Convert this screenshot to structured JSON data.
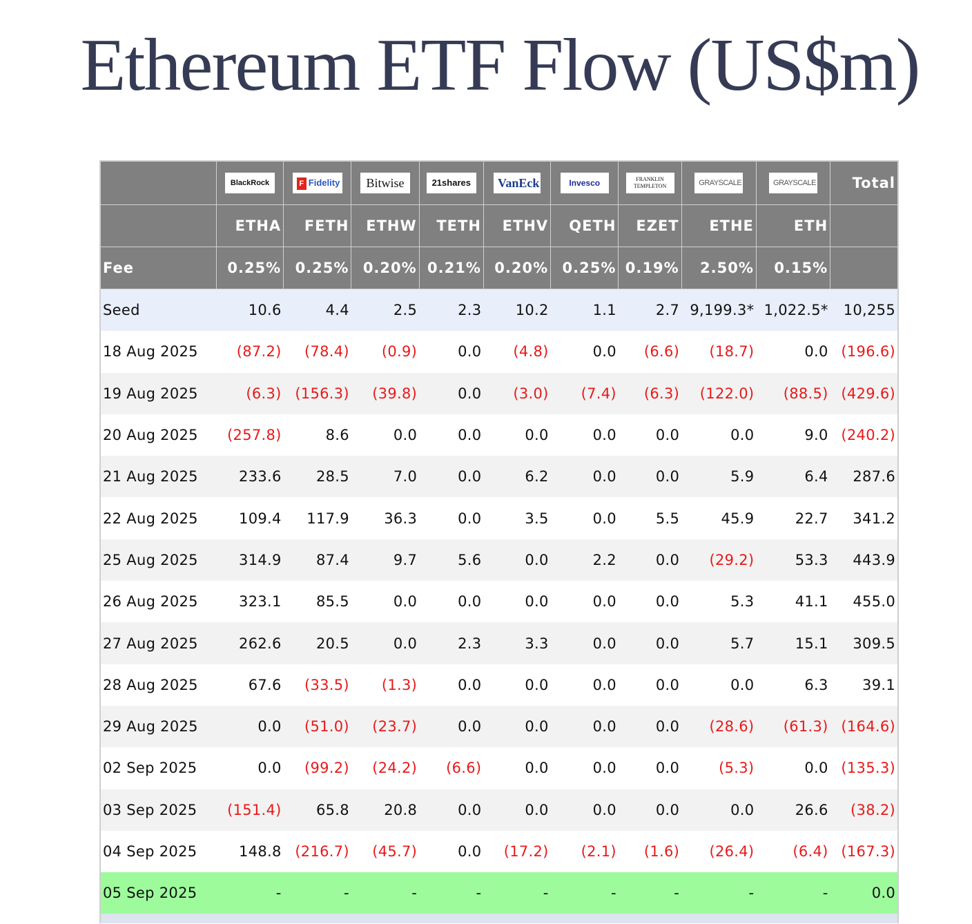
{
  "title": "Ethereum ETF Flow (US$m)",
  "header": {
    "issuers": [
      {
        "name": "BlackRock",
        "icon": "blackrock-logo"
      },
      {
        "name": "Fidelity",
        "icon": "fidelity-logo"
      },
      {
        "name": "Bitwise",
        "icon": "bitwise-logo"
      },
      {
        "name": "21shares",
        "icon": "21shares-logo"
      },
      {
        "name": "VanEck",
        "icon": "vaneck-logo"
      },
      {
        "name": "Invesco",
        "icon": "invesco-logo"
      },
      {
        "name": "FRANKLIN TEMPLETON",
        "icon": "franklin-templeton-logo"
      },
      {
        "name": "GRAYSCALE",
        "icon": "grayscale-logo"
      },
      {
        "name": "GRAYSCALE",
        "icon": "grayscale-logo"
      }
    ],
    "total_label": "Total",
    "tickers": [
      "ETHA",
      "FETH",
      "ETHW",
      "TETH",
      "ETHV",
      "QETH",
      "EZET",
      "ETHE",
      "ETH"
    ],
    "fee_label": "Fee",
    "fees": [
      "0.25%",
      "0.25%",
      "0.20%",
      "0.21%",
      "0.20%",
      "0.25%",
      "0.19%",
      "2.50%",
      "0.15%"
    ]
  },
  "rows": [
    {
      "date": "Seed",
      "type": "seed",
      "values": [
        "10.6",
        "4.4",
        "2.5",
        "2.3",
        "10.2",
        "1.1",
        "2.7",
        "9,199.3*",
        "1,022.5*"
      ],
      "total": "10,255"
    },
    {
      "date": "18 Aug 2025",
      "type": "odd",
      "values": [
        "(87.2)",
        "(78.4)",
        "(0.9)",
        "0.0",
        "(4.8)",
        "0.0",
        "(6.6)",
        "(18.7)",
        "0.0"
      ],
      "total": "(196.6)"
    },
    {
      "date": "19 Aug 2025",
      "type": "even",
      "values": [
        "(6.3)",
        "(156.3)",
        "(39.8)",
        "0.0",
        "(3.0)",
        "(7.4)",
        "(6.3)",
        "(122.0)",
        "(88.5)"
      ],
      "total": "(429.6)"
    },
    {
      "date": "20 Aug 2025",
      "type": "odd",
      "values": [
        "(257.8)",
        "8.6",
        "0.0",
        "0.0",
        "0.0",
        "0.0",
        "0.0",
        "0.0",
        "9.0"
      ],
      "total": "(240.2)"
    },
    {
      "date": "21 Aug 2025",
      "type": "even",
      "values": [
        "233.6",
        "28.5",
        "7.0",
        "0.0",
        "6.2",
        "0.0",
        "0.0",
        "5.9",
        "6.4"
      ],
      "total": "287.6"
    },
    {
      "date": "22 Aug 2025",
      "type": "odd",
      "values": [
        "109.4",
        "117.9",
        "36.3",
        "0.0",
        "3.5",
        "0.0",
        "5.5",
        "45.9",
        "22.7"
      ],
      "total": "341.2"
    },
    {
      "date": "25 Aug 2025",
      "type": "even",
      "values": [
        "314.9",
        "87.4",
        "9.7",
        "5.6",
        "0.0",
        "2.2",
        "0.0",
        "(29.2)",
        "53.3"
      ],
      "total": "443.9"
    },
    {
      "date": "26 Aug 2025",
      "type": "odd",
      "values": [
        "323.1",
        "85.5",
        "0.0",
        "0.0",
        "0.0",
        "0.0",
        "0.0",
        "5.3",
        "41.1"
      ],
      "total": "455.0"
    },
    {
      "date": "27 Aug 2025",
      "type": "even",
      "values": [
        "262.6",
        "20.5",
        "0.0",
        "2.3",
        "3.3",
        "0.0",
        "0.0",
        "5.7",
        "15.1"
      ],
      "total": "309.5"
    },
    {
      "date": "28 Aug 2025",
      "type": "odd",
      "values": [
        "67.6",
        "(33.5)",
        "(1.3)",
        "0.0",
        "0.0",
        "0.0",
        "0.0",
        "0.0",
        "6.3"
      ],
      "total": "39.1"
    },
    {
      "date": "29 Aug 2025",
      "type": "even",
      "values": [
        "0.0",
        "(51.0)",
        "(23.7)",
        "0.0",
        "0.0",
        "0.0",
        "0.0",
        "(28.6)",
        "(61.3)"
      ],
      "total": "(164.6)"
    },
    {
      "date": "02 Sep 2025",
      "type": "odd",
      "values": [
        "0.0",
        "(99.2)",
        "(24.2)",
        "(6.6)",
        "0.0",
        "0.0",
        "0.0",
        "(5.3)",
        "0.0"
      ],
      "total": "(135.3)"
    },
    {
      "date": "03 Sep 2025",
      "type": "even",
      "values": [
        "(151.4)",
        "65.8",
        "20.8",
        "0.0",
        "0.0",
        "0.0",
        "0.0",
        "0.0",
        "26.6"
      ],
      "total": "(38.2)"
    },
    {
      "date": "04 Sep 2025",
      "type": "odd",
      "values": [
        "148.8",
        "(216.7)",
        "(45.7)",
        "0.0",
        "(17.2)",
        "(2.1)",
        "(1.6)",
        "(26.4)",
        "(6.4)"
      ],
      "total": "(167.3)"
    },
    {
      "date": "05 Sep 2025",
      "type": "today",
      "values": [
        "-",
        "-",
        "-",
        "-",
        "-",
        "-",
        "-",
        "-",
        "-"
      ],
      "total": "0.0"
    }
  ]
}
